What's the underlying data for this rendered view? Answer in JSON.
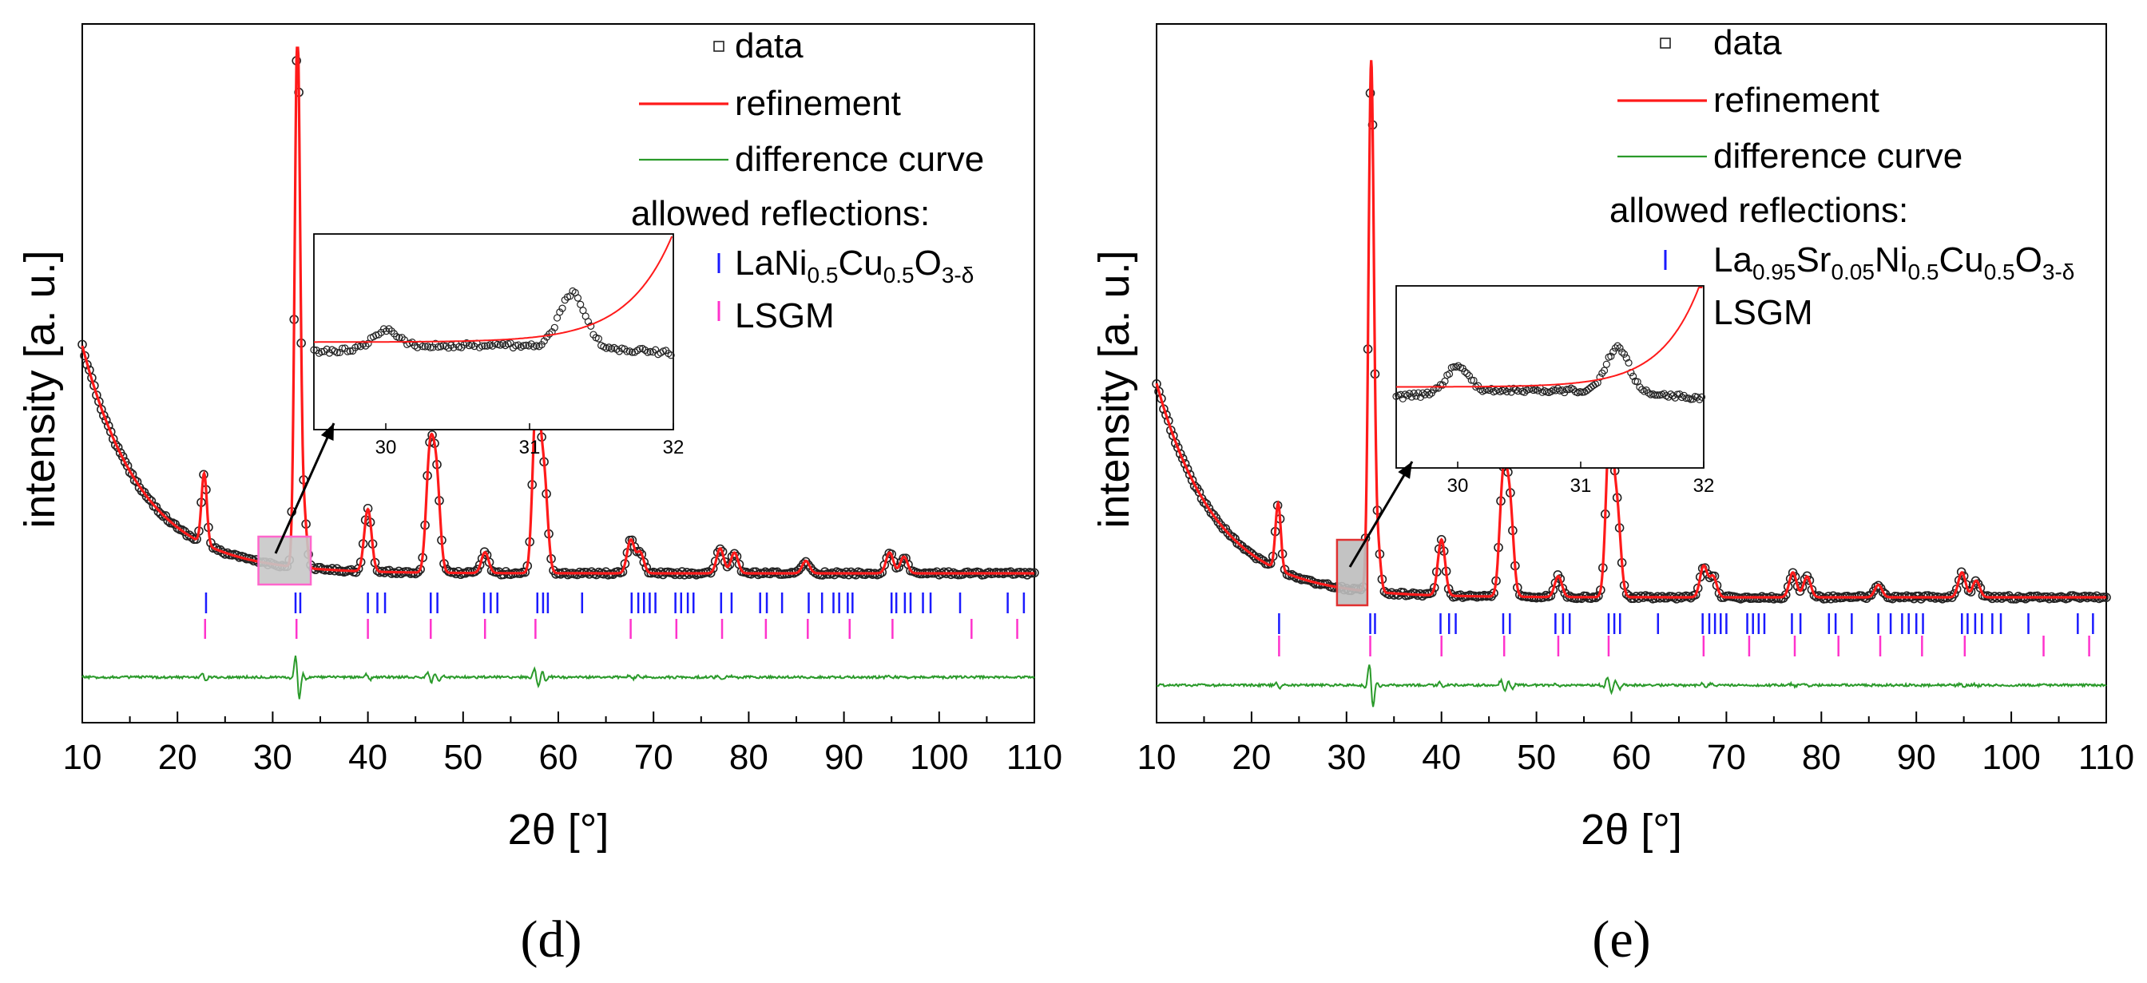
{
  "chart_data": [
    {
      "type": "line",
      "panel_label": "(d)",
      "xlabel": "2θ [°]",
      "ylabel": "intensity [a. u.]",
      "xlim": [
        10,
        110
      ],
      "x_ticks": [
        "10",
        "20",
        "30",
        "40",
        "50",
        "60",
        "70",
        "80",
        "90",
        "100",
        "110"
      ],
      "legend": {
        "data": "data",
        "refinement": "refinement",
        "difference": "difference curve",
        "header": "allowed reflections:",
        "phase1": {
          "base": "LaNi",
          "parts": [
            [
              "0.5",
              "sub"
            ],
            [
              "Cu",
              ""
            ],
            [
              "0.5",
              "sub"
            ],
            [
              "O",
              ""
            ],
            [
              "3-δ",
              "sub"
            ]
          ]
        },
        "phase2": "LSGM"
      },
      "main_peaks": [
        [
          22.8,
          0.34
        ],
        [
          32.6,
          2.6
        ],
        [
          33.3,
          0.25
        ],
        [
          40.0,
          0.3
        ],
        [
          46.5,
          0.55
        ],
        [
          47.2,
          0.45
        ],
        [
          52.3,
          0.1
        ],
        [
          57.7,
          0.85
        ],
        [
          58.5,
          0.45
        ],
        [
          67.6,
          0.16
        ],
        [
          68.6,
          0.1
        ],
        [
          77.0,
          0.12
        ],
        [
          78.5,
          0.1
        ],
        [
          86.0,
          0.06
        ],
        [
          94.8,
          0.1
        ],
        [
          96.3,
          0.08
        ]
      ],
      "reflections_phase1": [
        23.0,
        32.4,
        32.9,
        40.0,
        41.0,
        41.8,
        46.6,
        47.3,
        52.2,
        52.9,
        53.6,
        57.8,
        58.4,
        58.9,
        62.5,
        67.7,
        68.4,
        69.0,
        69.6,
        70.2,
        72.3,
        72.9,
        73.6,
        74.2,
        77.1,
        78.2,
        81.2,
        81.9,
        83.5,
        86.3,
        87.7,
        88.9,
        89.5,
        90.4,
        90.9,
        95.0,
        95.5,
        96.4,
        97.0,
        98.3,
        99.1,
        102.2,
        107.2,
        108.9
      ],
      "reflections_phase2": [
        22.9,
        32.5,
        40.0,
        46.6,
        52.3,
        57.6,
        67.6,
        72.4,
        77.2,
        81.8,
        86.2,
        90.6,
        95.1,
        103.4,
        108.2
      ],
      "inset": {
        "xlim": [
          29.5,
          32
        ],
        "x_ticks": [
          "30",
          "31",
          "32"
        ],
        "bumps": [
          [
            30.0,
            0.28
          ],
          [
            31.3,
            0.9
          ]
        ],
        "red_rise": 0.9
      }
    },
    {
      "type": "line",
      "panel_label": "(e)",
      "xlabel": "2θ [°]",
      "ylabel": "intensity [a. u.]",
      "xlim": [
        10,
        110
      ],
      "x_ticks": [
        "10",
        "20",
        "30",
        "40",
        "50",
        "60",
        "70",
        "80",
        "90",
        "100",
        "110"
      ],
      "legend": {
        "data": "data",
        "refinement": "refinement",
        "difference": "difference curve",
        "header": "allowed reflections:",
        "phase1": {
          "base": "La",
          "parts": [
            [
              "0.95",
              "sub"
            ],
            [
              "Sr",
              ""
            ],
            [
              "0.05",
              "sub"
            ],
            [
              "Ni",
              ""
            ],
            [
              "0.5",
              "sub"
            ],
            [
              "Cu",
              ""
            ],
            [
              "0.5",
              "sub"
            ],
            [
              "O",
              ""
            ],
            [
              "3-δ",
              "sub"
            ]
          ]
        },
        "phase2": "LSGM"
      },
      "main_peaks": [
        [
          22.8,
          0.32
        ],
        [
          32.6,
          2.55
        ],
        [
          33.3,
          0.22
        ],
        [
          40.0,
          0.27
        ],
        [
          46.5,
          0.55
        ],
        [
          47.2,
          0.42
        ],
        [
          52.3,
          0.1
        ],
        [
          57.7,
          0.8
        ],
        [
          58.5,
          0.4
        ],
        [
          67.6,
          0.15
        ],
        [
          68.6,
          0.1
        ],
        [
          77.0,
          0.12
        ],
        [
          78.5,
          0.1
        ],
        [
          86.0,
          0.06
        ],
        [
          94.8,
          0.12
        ],
        [
          96.3,
          0.08
        ]
      ],
      "reflections_phase1": [
        22.9,
        32.5,
        33.0,
        39.9,
        40.8,
        41.5,
        46.5,
        47.2,
        52.0,
        52.8,
        53.5,
        57.6,
        58.2,
        58.8,
        62.8,
        67.5,
        68.2,
        68.8,
        69.4,
        70.0,
        72.2,
        72.8,
        73.4,
        74.0,
        76.9,
        77.8,
        80.8,
        81.5,
        83.2,
        86.0,
        87.3,
        88.5,
        89.2,
        90.0,
        90.7,
        94.8,
        95.4,
        96.2,
        96.9,
        98.0,
        98.9,
        101.8,
        107.0,
        108.6
      ],
      "reflections_phase2": [
        22.9,
        32.5,
        40.0,
        46.6,
        52.3,
        57.6,
        67.6,
        72.4,
        77.2,
        81.8,
        86.2,
        90.6,
        95.1,
        103.4,
        108.2
      ],
      "inset": {
        "xlim": [
          29.5,
          32
        ],
        "x_ticks": [
          "30",
          "31",
          "32"
        ],
        "bumps": [
          [
            30.0,
            0.45
          ],
          [
            31.3,
            0.75
          ]
        ],
        "red_rise": 1.0
      }
    }
  ]
}
